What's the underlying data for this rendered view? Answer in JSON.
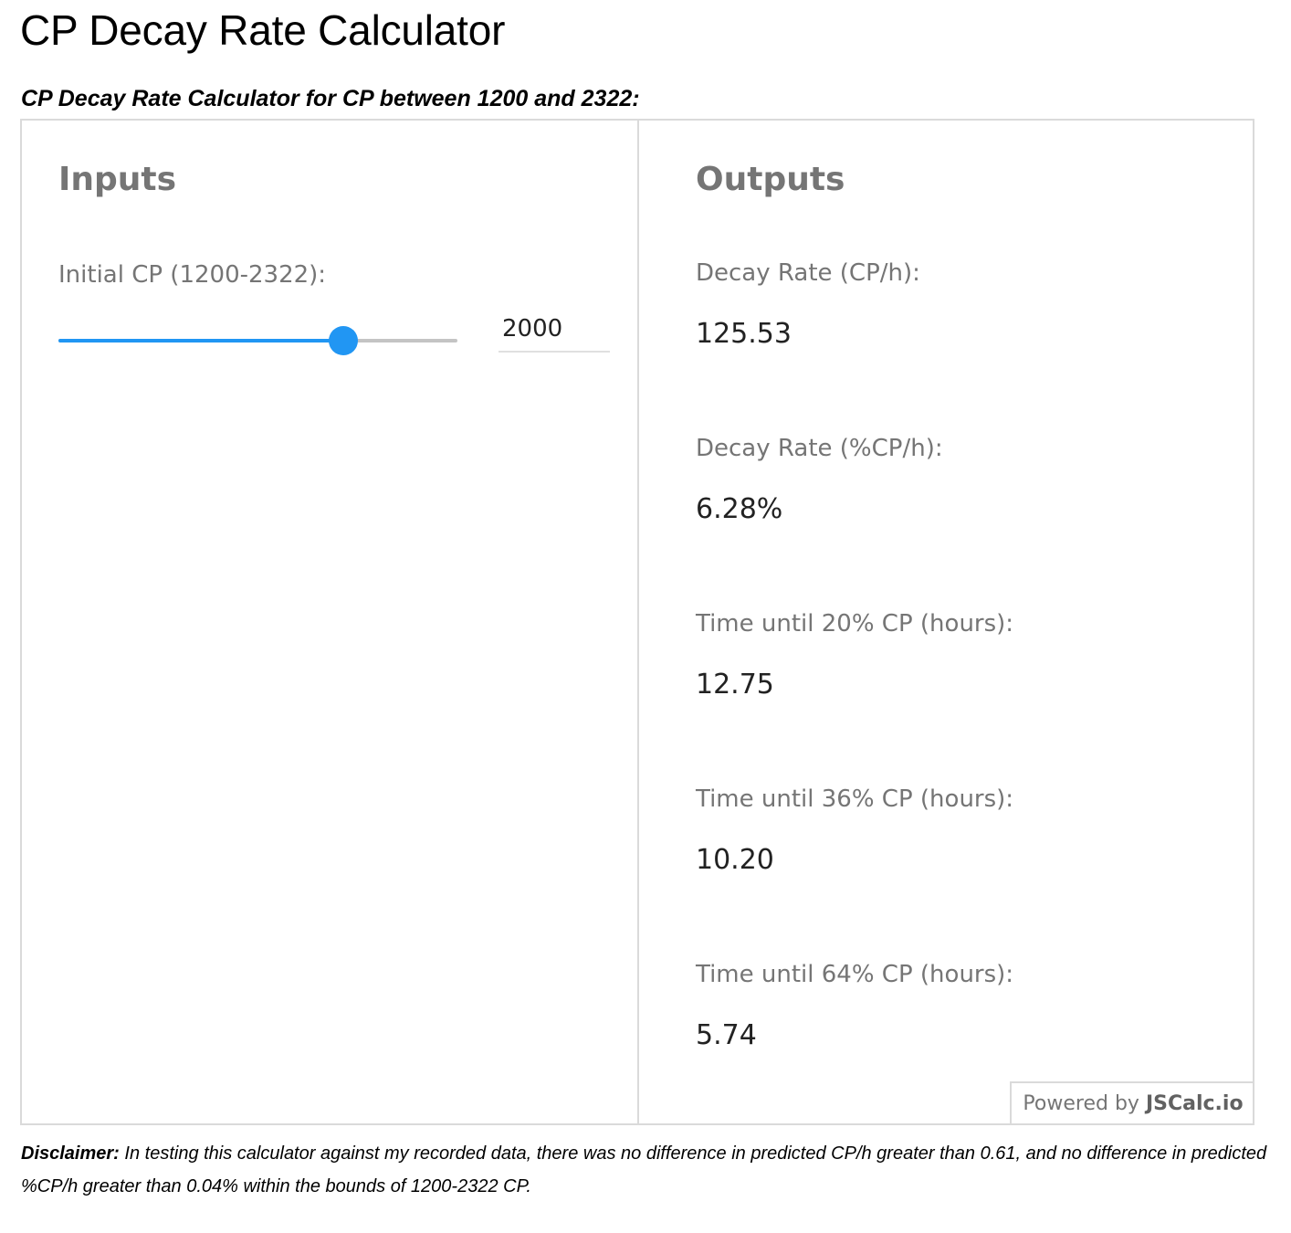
{
  "page": {
    "title": "CP Decay Rate Calculator",
    "subtitle": "CP Decay Rate Calculator for CP between 1200 and 2322:"
  },
  "inputs": {
    "heading": "Inputs",
    "initial_cp": {
      "label": "Initial CP (1200-2322):",
      "value": "2000",
      "min": 1200,
      "max": 2322
    }
  },
  "outputs": {
    "heading": "Outputs",
    "items": [
      {
        "label": "Decay Rate (CP/h):",
        "value": "125.53"
      },
      {
        "label": "Decay Rate (%CP/h):",
        "value": "6.28%"
      },
      {
        "label": "Time until 20% CP (hours):",
        "value": "12.75"
      },
      {
        "label": "Time until 36% CP (hours):",
        "value": "10.20"
      },
      {
        "label": "Time until 64% CP (hours):",
        "value": "5.74"
      }
    ]
  },
  "powered_by": {
    "prefix": "Powered by",
    "brand": "JSCalc.io"
  },
  "disclaimer": {
    "lead": "Disclaimer:",
    "text": "In testing this calculator against my recorded data, there was no difference in predicted CP/h greater than 0.61, and no difference in predicted %CP/h greater than 0.04% within the bounds of 1200-2322 CP."
  },
  "colors": {
    "accent": "#2196f3",
    "label_gray": "#757575",
    "border": "#dadada"
  }
}
